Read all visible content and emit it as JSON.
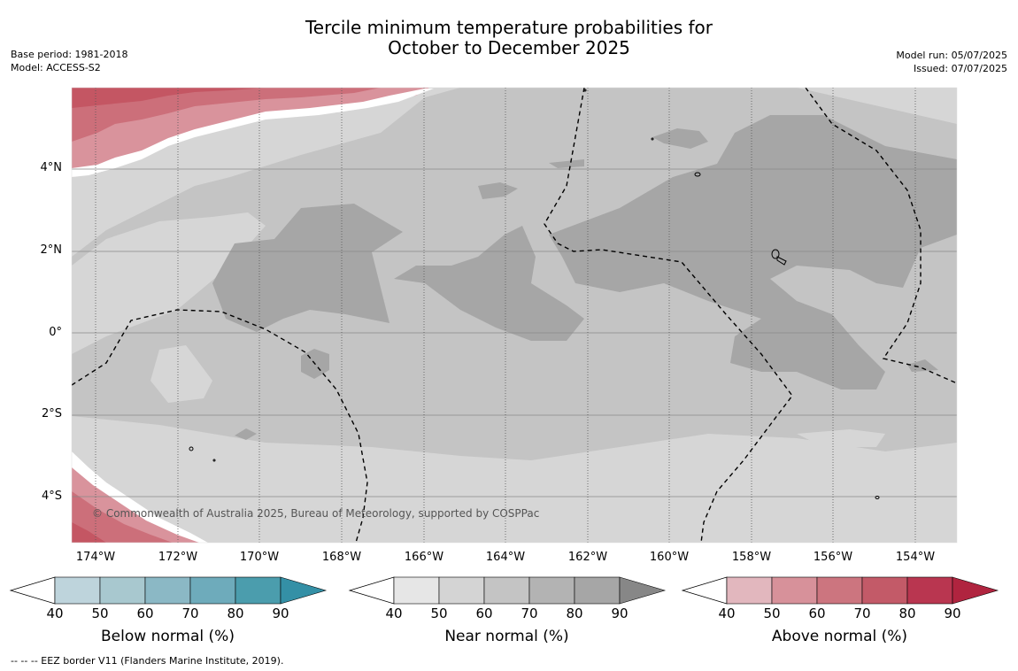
{
  "header": {
    "title_line1": "Tercile minimum temperature probabilities for",
    "title_line2": "October to December 2025",
    "base_period": "Base period: 1981-2018",
    "model": "Model: ACCESS-S2",
    "model_run": "Model run: 05/07/2025",
    "issued": "Issued: 07/07/2025"
  },
  "map": {
    "copyright": "© Commonwealth of Australia 2025, Bureau of Meteorology, supported by COSPPac",
    "lat_ticks": [
      "4°N",
      "2°N",
      "0°",
      "2°S",
      "4°S"
    ],
    "lon_ticks": [
      "174°W",
      "172°W",
      "170°W",
      "168°W",
      "166°W",
      "164°W",
      "162°W",
      "160°W",
      "158°W",
      "156°W",
      "154°W"
    ],
    "colors": {
      "near_50": "#d6d6d6",
      "near_60": "#c4c4c4",
      "near_70": "#b3b3b3",
      "near_80": "#a6a6a6",
      "above_50": "#d9939c",
      "above_60": "#cc6f7a",
      "above_70": "#c45663"
    }
  },
  "colorbars": [
    {
      "label": "Below normal (%)",
      "ticks": [
        "40",
        "50",
        "60",
        "70",
        "80",
        "90"
      ],
      "colors": [
        "#bed4dc",
        "#a8c8cf",
        "#8bb8c5",
        "#6eabbb",
        "#4b9dad",
        "#3490a6"
      ]
    },
    {
      "label": "Near normal (%)",
      "ticks": [
        "40",
        "50",
        "60",
        "70",
        "80",
        "90"
      ],
      "colors": [
        "#e6e6e6",
        "#d4d4d4",
        "#c4c4c4",
        "#b3b3b3",
        "#a6a6a6",
        "#878787"
      ]
    },
    {
      "label": "Above normal (%)",
      "ticks": [
        "40",
        "50",
        "60",
        "70",
        "80",
        "90"
      ],
      "colors": [
        "#e2b7be",
        "#d7919a",
        "#cc757f",
        "#c35a68",
        "#b93650",
        "#b0243f"
      ]
    }
  ],
  "footer": {
    "eez_note": "--  --  -- EEZ border V11 (Flanders Marine Institute, 2019)."
  }
}
